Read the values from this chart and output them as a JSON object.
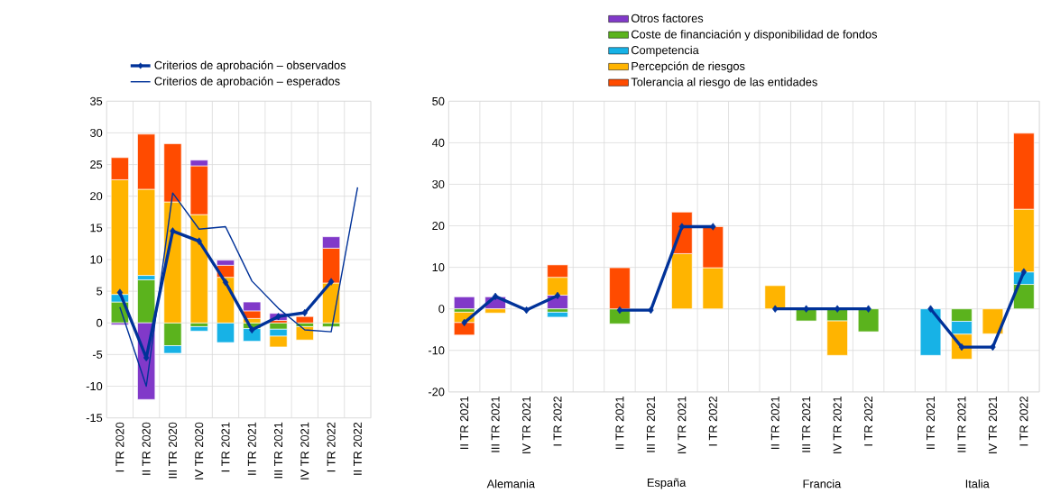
{
  "chart_data": [
    {
      "type": "bar",
      "stacked": true,
      "categories": [
        "I TR 2020",
        "II TR 2020",
        "III TR 2020",
        "IV TR 2020",
        "I TR 2021",
        "II TR 2021",
        "III TR 2021",
        "IV TR 2021",
        "I TR 2022",
        "II TR 2022"
      ],
      "series": [
        {
          "color": "#5bb31d",
          "values": [
            3.3,
            6.8,
            -3.6,
            -0.6,
            null,
            -0.9,
            -1.0,
            -0.6,
            -0.6,
            null
          ]
        },
        {
          "color": "#17b2e6",
          "values": [
            1.2,
            0.7,
            -1.2,
            -0.7,
            -3.1,
            -2.0,
            -1.1,
            null,
            null,
            null
          ]
        },
        {
          "color": "#ffb400",
          "values": [
            18.1,
            13.6,
            19.1,
            17.1,
            7.2,
            0.7,
            -1.7,
            -2.1,
            6.3,
            null
          ]
        },
        {
          "color": "#ff4b00",
          "values": [
            3.5,
            8.7,
            9.2,
            7.7,
            1.9,
            1.2,
            0.4,
            1.0,
            5.5,
            null
          ]
        },
        {
          "color": "#8139c9",
          "values": [
            -0.3,
            -12.1,
            null,
            0.9,
            0.8,
            1.4,
            1.1,
            null,
            1.8,
            null
          ]
        },
        {
          "type": "line",
          "name": "Criterios de aprobación – observados",
          "color": "#003299",
          "marker": "diamond",
          "values": [
            4.8,
            -5.5,
            14.5,
            12.9,
            6.4,
            -1.1,
            1.0,
            1.6,
            6.5,
            null
          ]
        },
        {
          "type": "line",
          "name": "Criterios de aprobación – esperados",
          "color": "#003299",
          "marker": "none",
          "values": [
            2.5,
            -10.0,
            20.5,
            14.8,
            15.2,
            6.6,
            2.3,
            -1.1,
            -1.4,
            21.4
          ]
        }
      ],
      "ylim": [
        -15,
        35
      ],
      "yticks": [
        -15,
        -10,
        -5,
        0,
        5,
        10,
        15,
        20,
        25,
        30,
        35
      ],
      "grid": true,
      "legend": "top"
    },
    {
      "type": "bar",
      "stacked": true,
      "categories": [
        "II TR 2021",
        "III TR 2021",
        "IV TR 2021",
        "I TR 2022",
        null,
        "II TR 2021",
        "III TR 2021",
        "IV TR 2021",
        "I TR 2022",
        null,
        "II TR 2021",
        "III TR 2021",
        "IV TR 2021",
        "I TR 2022",
        null,
        "II TR 2021",
        "III TR 2021",
        "IV TR 2021",
        "I TR 2022"
      ],
      "series": [
        {
          "name": "Otros factores",
          "color": "#8139c9",
          "values": [
            2.9,
            2.9,
            null,
            3.3,
            null,
            null,
            null,
            null,
            null,
            null,
            null,
            null,
            null,
            null,
            null,
            null,
            null,
            null,
            null
          ]
        },
        {
          "name": "Coste de financiación y disponibilidad de fondos",
          "color": "#5bb31d",
          "values": [
            -0.8,
            null,
            null,
            -0.8,
            null,
            -3.6,
            null,
            null,
            null,
            null,
            null,
            -2.9,
            -2.9,
            -5.5,
            null,
            null,
            -3.0,
            null,
            5.9
          ]
        },
        {
          "name": "Competencia",
          "color": "#17b2e6",
          "values": [
            null,
            null,
            null,
            -1.2,
            null,
            null,
            null,
            null,
            null,
            null,
            null,
            null,
            null,
            null,
            null,
            -11.2,
            -3.1,
            null,
            3.0
          ]
        },
        {
          "name": "Percepción de riesgos",
          "color": "#ffb400",
          "values": [
            -2.5,
            -1.0,
            null,
            4.3,
            null,
            null,
            null,
            13.3,
            9.9,
            null,
            5.6,
            null,
            -8.3,
            null,
            null,
            null,
            -6.0,
            -6.0,
            15.1
          ]
        },
        {
          "name": "Tolerancia al riesgo de las entidades",
          "color": "#ff4b00",
          "values": [
            -3.0,
            null,
            null,
            3.0,
            null,
            9.9,
            null,
            10.0,
            9.9,
            null,
            null,
            null,
            null,
            null,
            null,
            null,
            null,
            null,
            18.3
          ]
        },
        {
          "type": "line",
          "color": "#003299",
          "marker": "diamond",
          "values": [
            -3.3,
            3.0,
            -0.3,
            3.2,
            null,
            -0.3,
            -0.3,
            19.8,
            19.8,
            null,
            0,
            0,
            0,
            0,
            null,
            0,
            -9.2,
            -9.2,
            8.9
          ]
        }
      ],
      "ylim": [
        -20,
        50
      ],
      "yticks": [
        -20,
        -10,
        0,
        10,
        20,
        30,
        40,
        50
      ],
      "grid": true,
      "legend": "top",
      "annotations": [
        "Alemania",
        "España",
        "Francia",
        "Italia"
      ]
    }
  ]
}
